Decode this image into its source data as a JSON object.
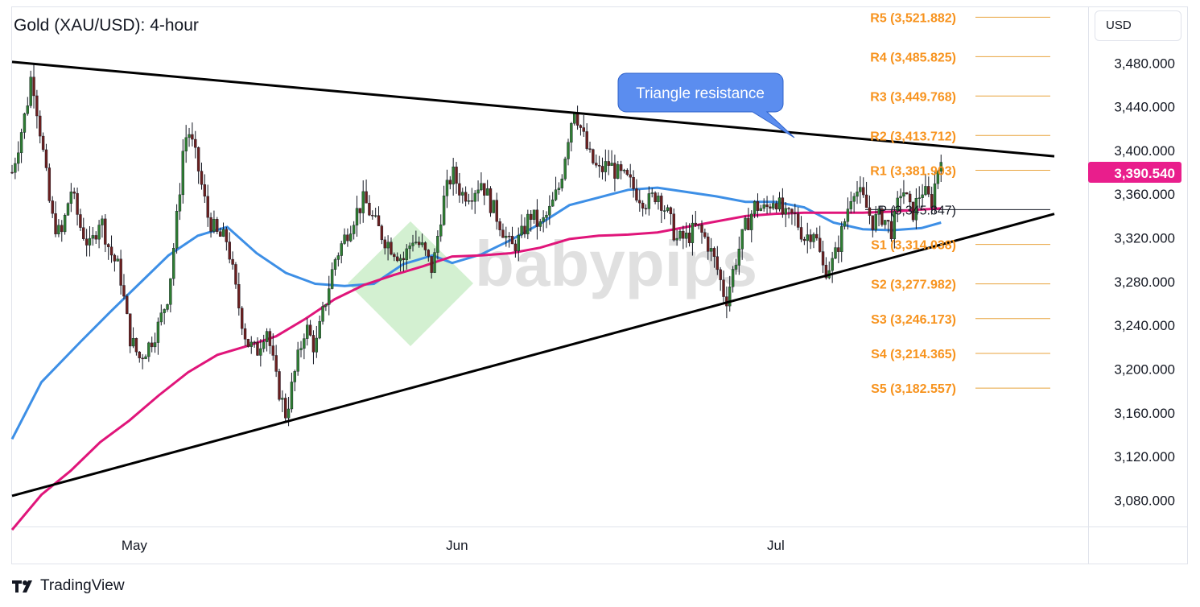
{
  "chart_data": {
    "type": "candlestick",
    "title": "Gold (XAU/USD): 4-hour",
    "currency": "USD",
    "x_tick_labels": [
      "May",
      "Jun",
      "Jul"
    ],
    "y_tick_labels": [
      "3,480.000",
      "3,440.000",
      "3,400.000",
      "3,360.000",
      "3,320.000",
      "3,280.000",
      "3,240.000",
      "3,200.000",
      "3,160.000",
      "3,120.000",
      "3,080.000"
    ],
    "y_ticks": [
      3480,
      3440,
      3400,
      3360,
      3320,
      3280,
      3240,
      3200,
      3160,
      3120,
      3080
    ],
    "ylim": [
      3056,
      3531
    ],
    "last_price": 3390.54,
    "last_price_label": "3,390.540",
    "last_price_color": "#e91e8c",
    "pivot_levels": [
      {
        "label": "R5 (3,521.882)",
        "value": 3521.882
      },
      {
        "label": "R4 (3,485.825)",
        "value": 3485.825
      },
      {
        "label": "R3 (3,449.768)",
        "value": 3449.768
      },
      {
        "label": "R2 (3,413.712)",
        "value": 3413.712
      },
      {
        "label": "R1 (3,381.903)",
        "value": 3381.903
      },
      {
        "label": "P (3,345.847)",
        "value": 3345.847
      },
      {
        "label": "S1 (3,314.038)",
        "value": 3314.038
      },
      {
        "label": "S2 (3,277.982)",
        "value": 3277.982
      },
      {
        "label": "S3 (3,246.173)",
        "value": 3246.173
      },
      {
        "label": "S4 (3,214.365)",
        "value": 3214.365
      },
      {
        "label": "S5 (3,182.557)",
        "value": 3182.557
      }
    ],
    "annotations": [
      {
        "text": "Triangle resistance",
        "color": "#5b8def"
      }
    ],
    "trendlines": [
      {
        "name": "resistance",
        "from": {
          "t": 0,
          "price": 3481
        },
        "to": {
          "t": 1,
          "price": 3400
        }
      },
      {
        "name": "support",
        "from": {
          "t": 0,
          "price": 3084
        },
        "to": {
          "t": 1,
          "price": 3326
        }
      }
    ],
    "series": [
      {
        "name": "",
        "color": "#3d8fe6",
        "points": [
          [
            0,
            3136
          ],
          [
            0.03,
            3188
          ],
          [
            0.07,
            3225
          ],
          [
            0.1,
            3252
          ],
          [
            0.13,
            3278
          ],
          [
            0.16,
            3304
          ],
          [
            0.19,
            3322
          ],
          [
            0.22,
            3330
          ],
          [
            0.25,
            3306
          ],
          [
            0.28,
            3288
          ],
          [
            0.31,
            3278
          ],
          [
            0.34,
            3276
          ],
          [
            0.37,
            3278
          ],
          [
            0.4,
            3296
          ],
          [
            0.43,
            3304
          ],
          [
            0.45,
            3297
          ],
          [
            0.48,
            3305
          ],
          [
            0.51,
            3318
          ],
          [
            0.54,
            3333
          ],
          [
            0.57,
            3350
          ],
          [
            0.6,
            3357
          ],
          [
            0.63,
            3364
          ],
          [
            0.66,
            3366
          ],
          [
            0.69,
            3362
          ],
          [
            0.72,
            3358
          ],
          [
            0.75,
            3353
          ],
          [
            0.78,
            3353
          ],
          [
            0.81,
            3348
          ],
          [
            0.84,
            3334
          ],
          [
            0.87,
            3328
          ],
          [
            0.9,
            3327
          ],
          [
            0.93,
            3329
          ],
          [
            0.95,
            3334
          ]
        ]
      },
      {
        "name": "",
        "color": "#e0157a",
        "points": [
          [
            0,
            3053
          ],
          [
            0.03,
            3085
          ],
          [
            0.06,
            3107
          ],
          [
            0.09,
            3133
          ],
          [
            0.12,
            3153
          ],
          [
            0.15,
            3176
          ],
          [
            0.18,
            3197
          ],
          [
            0.21,
            3213
          ],
          [
            0.24,
            3221
          ],
          [
            0.27,
            3230
          ],
          [
            0.3,
            3246
          ],
          [
            0.33,
            3264
          ],
          [
            0.36,
            3277
          ],
          [
            0.39,
            3286
          ],
          [
            0.42,
            3294
          ],
          [
            0.45,
            3303
          ],
          [
            0.48,
            3304
          ],
          [
            0.51,
            3306
          ],
          [
            0.54,
            3311
          ],
          [
            0.57,
            3319
          ],
          [
            0.6,
            3322
          ],
          [
            0.63,
            3323
          ],
          [
            0.66,
            3325
          ],
          [
            0.69,
            3330
          ],
          [
            0.72,
            3335
          ],
          [
            0.75,
            3340
          ],
          [
            0.78,
            3342
          ],
          [
            0.81,
            3343
          ],
          [
            0.84,
            3343
          ],
          [
            0.87,
            3343
          ],
          [
            0.9,
            3344
          ],
          [
            0.93,
            3346
          ],
          [
            0.95,
            3347
          ]
        ]
      }
    ],
    "close_path": [
      [
        0,
        3380
      ],
      [
        0.015,
        3440
      ],
      [
        0.02,
        3472
      ],
      [
        0.03,
        3410
      ],
      [
        0.04,
        3340
      ],
      [
        0.05,
        3320
      ],
      [
        0.06,
        3365
      ],
      [
        0.07,
        3330
      ],
      [
        0.08,
        3310
      ],
      [
        0.09,
        3340
      ],
      [
        0.1,
        3308
      ],
      [
        0.11,
        3290
      ],
      [
        0.12,
        3230
      ],
      [
        0.13,
        3210
      ],
      [
        0.14,
        3222
      ],
      [
        0.15,
        3240
      ],
      [
        0.16,
        3270
      ],
      [
        0.17,
        3350
      ],
      [
        0.175,
        3402
      ],
      [
        0.18,
        3420
      ],
      [
        0.19,
        3385
      ],
      [
        0.2,
        3340
      ],
      [
        0.21,
        3322
      ],
      [
        0.22,
        3318
      ],
      [
        0.23,
        3265
      ],
      [
        0.24,
        3225
      ],
      [
        0.25,
        3215
      ],
      [
        0.26,
        3240
      ],
      [
        0.27,
        3190
      ],
      [
        0.28,
        3158
      ],
      [
        0.29,
        3200
      ],
      [
        0.3,
        3240
      ],
      [
        0.31,
        3218
      ],
      [
        0.32,
        3260
      ],
      [
        0.33,
        3300
      ],
      [
        0.34,
        3320
      ],
      [
        0.35,
        3340
      ],
      [
        0.36,
        3355
      ],
      [
        0.37,
        3335
      ],
      [
        0.38,
        3320
      ],
      [
        0.39,
        3310
      ],
      [
        0.4,
        3300
      ],
      [
        0.41,
        3320
      ],
      [
        0.42,
        3310
      ],
      [
        0.43,
        3290
      ],
      [
        0.44,
        3350
      ],
      [
        0.45,
        3380
      ],
      [
        0.46,
        3360
      ],
      [
        0.47,
        3362
      ],
      [
        0.48,
        3372
      ],
      [
        0.49,
        3350
      ],
      [
        0.5,
        3332
      ],
      [
        0.51,
        3310
      ],
      [
        0.52,
        3320
      ],
      [
        0.53,
        3342
      ],
      [
        0.54,
        3330
      ],
      [
        0.55,
        3345
      ],
      [
        0.56,
        3368
      ],
      [
        0.57,
        3420
      ],
      [
        0.575,
        3440
      ],
      [
        0.58,
        3425
      ],
      [
        0.59,
        3395
      ],
      [
        0.6,
        3380
      ],
      [
        0.61,
        3388
      ],
      [
        0.62,
        3378
      ],
      [
        0.63,
        3372
      ],
      [
        0.64,
        3360
      ],
      [
        0.65,
        3352
      ],
      [
        0.66,
        3362
      ],
      [
        0.67,
        3342
      ],
      [
        0.68,
        3318
      ],
      [
        0.69,
        3320
      ],
      [
        0.7,
        3330
      ],
      [
        0.71,
        3318
      ],
      [
        0.72,
        3295
      ],
      [
        0.73,
        3262
      ],
      [
        0.74,
        3300
      ],
      [
        0.75,
        3330
      ],
      [
        0.76,
        3350
      ],
      [
        0.77,
        3345
      ],
      [
        0.78,
        3358
      ],
      [
        0.79,
        3338
      ],
      [
        0.8,
        3340
      ],
      [
        0.81,
        3320
      ],
      [
        0.82,
        3328
      ],
      [
        0.83,
        3290
      ],
      [
        0.84,
        3298
      ],
      [
        0.85,
        3330
      ],
      [
        0.86,
        3368
      ],
      [
        0.87,
        3355
      ],
      [
        0.88,
        3335
      ],
      [
        0.89,
        3340
      ],
      [
        0.9,
        3326
      ],
      [
        0.91,
        3368
      ],
      [
        0.92,
        3340
      ],
      [
        0.93,
        3365
      ],
      [
        0.94,
        3352
      ],
      [
        0.95,
        3398
      ]
    ]
  }
}
